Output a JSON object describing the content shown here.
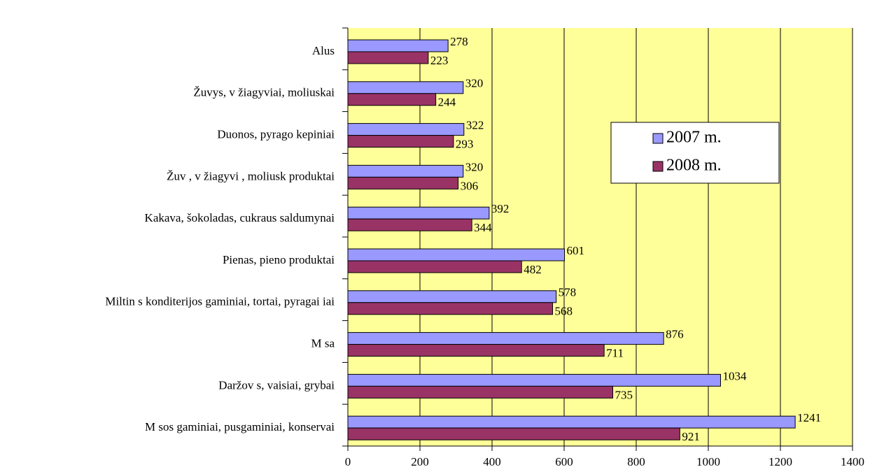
{
  "chart_data": {
    "type": "bar",
    "orientation": "horizontal",
    "categories": [
      "Alus",
      "Žuvys, v žiagyviai, moliuskai",
      "Duonos, pyrago kepiniai",
      "Žuv , v žiagyvi , moliusk produktai",
      "Kakava, šokoladas, cukraus saldumynai",
      "Pienas, pieno produktai",
      "Miltin s konditerijos gaminiai, tortai, pyragai iai",
      "M sa",
      "Daržov s, vaisiai, grybai",
      "M sos gaminiai, pusgaminiai, konservai"
    ],
    "series": [
      {
        "name": "2007 m.",
        "color": "#9999ff",
        "values": [
          278,
          320,
          322,
          320,
          392,
          601,
          578,
          876,
          1034,
          1241
        ]
      },
      {
        "name": "2008 m.",
        "color": "#993366",
        "values": [
          223,
          244,
          293,
          306,
          344,
          482,
          568,
          711,
          735,
          921
        ]
      }
    ],
    "xlim": [
      0,
      1400
    ],
    "xticks": [
      0,
      200,
      400,
      600,
      800,
      1000,
      1200,
      1400
    ],
    "grid": true
  }
}
